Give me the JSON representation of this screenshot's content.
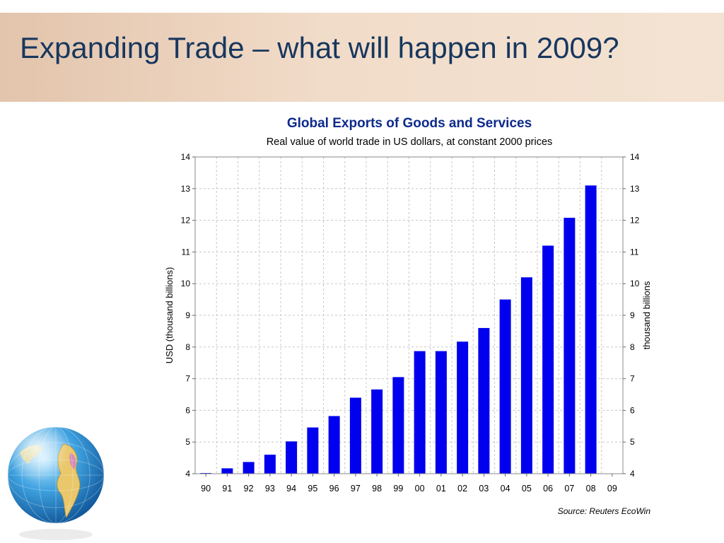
{
  "slide": {
    "title": "Expanding Trade – what will happen in 2009?"
  },
  "colors": {
    "bar": "#0000ee",
    "chart_title": "#0d2a8c",
    "slide_title": "#17375e",
    "title_band": "#ecd2bd"
  },
  "decoration": {
    "globe_icon": "globe-icon"
  },
  "chart_data": {
    "type": "bar",
    "title": "Global Exports of Goods and Services",
    "subtitle": "Real value of world trade in US dollars, at constant 2000 prices",
    "ylabel": "USD (thousand billions)",
    "ylabel_right": "thousand billions",
    "categories": [
      "90",
      "91",
      "92",
      "93",
      "94",
      "95",
      "96",
      "97",
      "98",
      "99",
      "00",
      "01",
      "02",
      "03",
      "04",
      "05",
      "06",
      "07",
      "08",
      "09"
    ],
    "values": [
      4.0,
      4.17,
      4.37,
      4.6,
      5.02,
      5.46,
      5.82,
      6.4,
      6.66,
      7.05,
      7.87,
      7.87,
      8.17,
      8.6,
      9.5,
      10.2,
      11.2,
      12.08,
      13.1,
      null
    ],
    "yticks": [
      "4",
      "5",
      "6",
      "7",
      "8",
      "9",
      "10",
      "11",
      "12",
      "13",
      "14"
    ],
    "ylim": [
      4,
      14
    ],
    "grid": true,
    "source": "Source: Reuters EcoWin"
  }
}
